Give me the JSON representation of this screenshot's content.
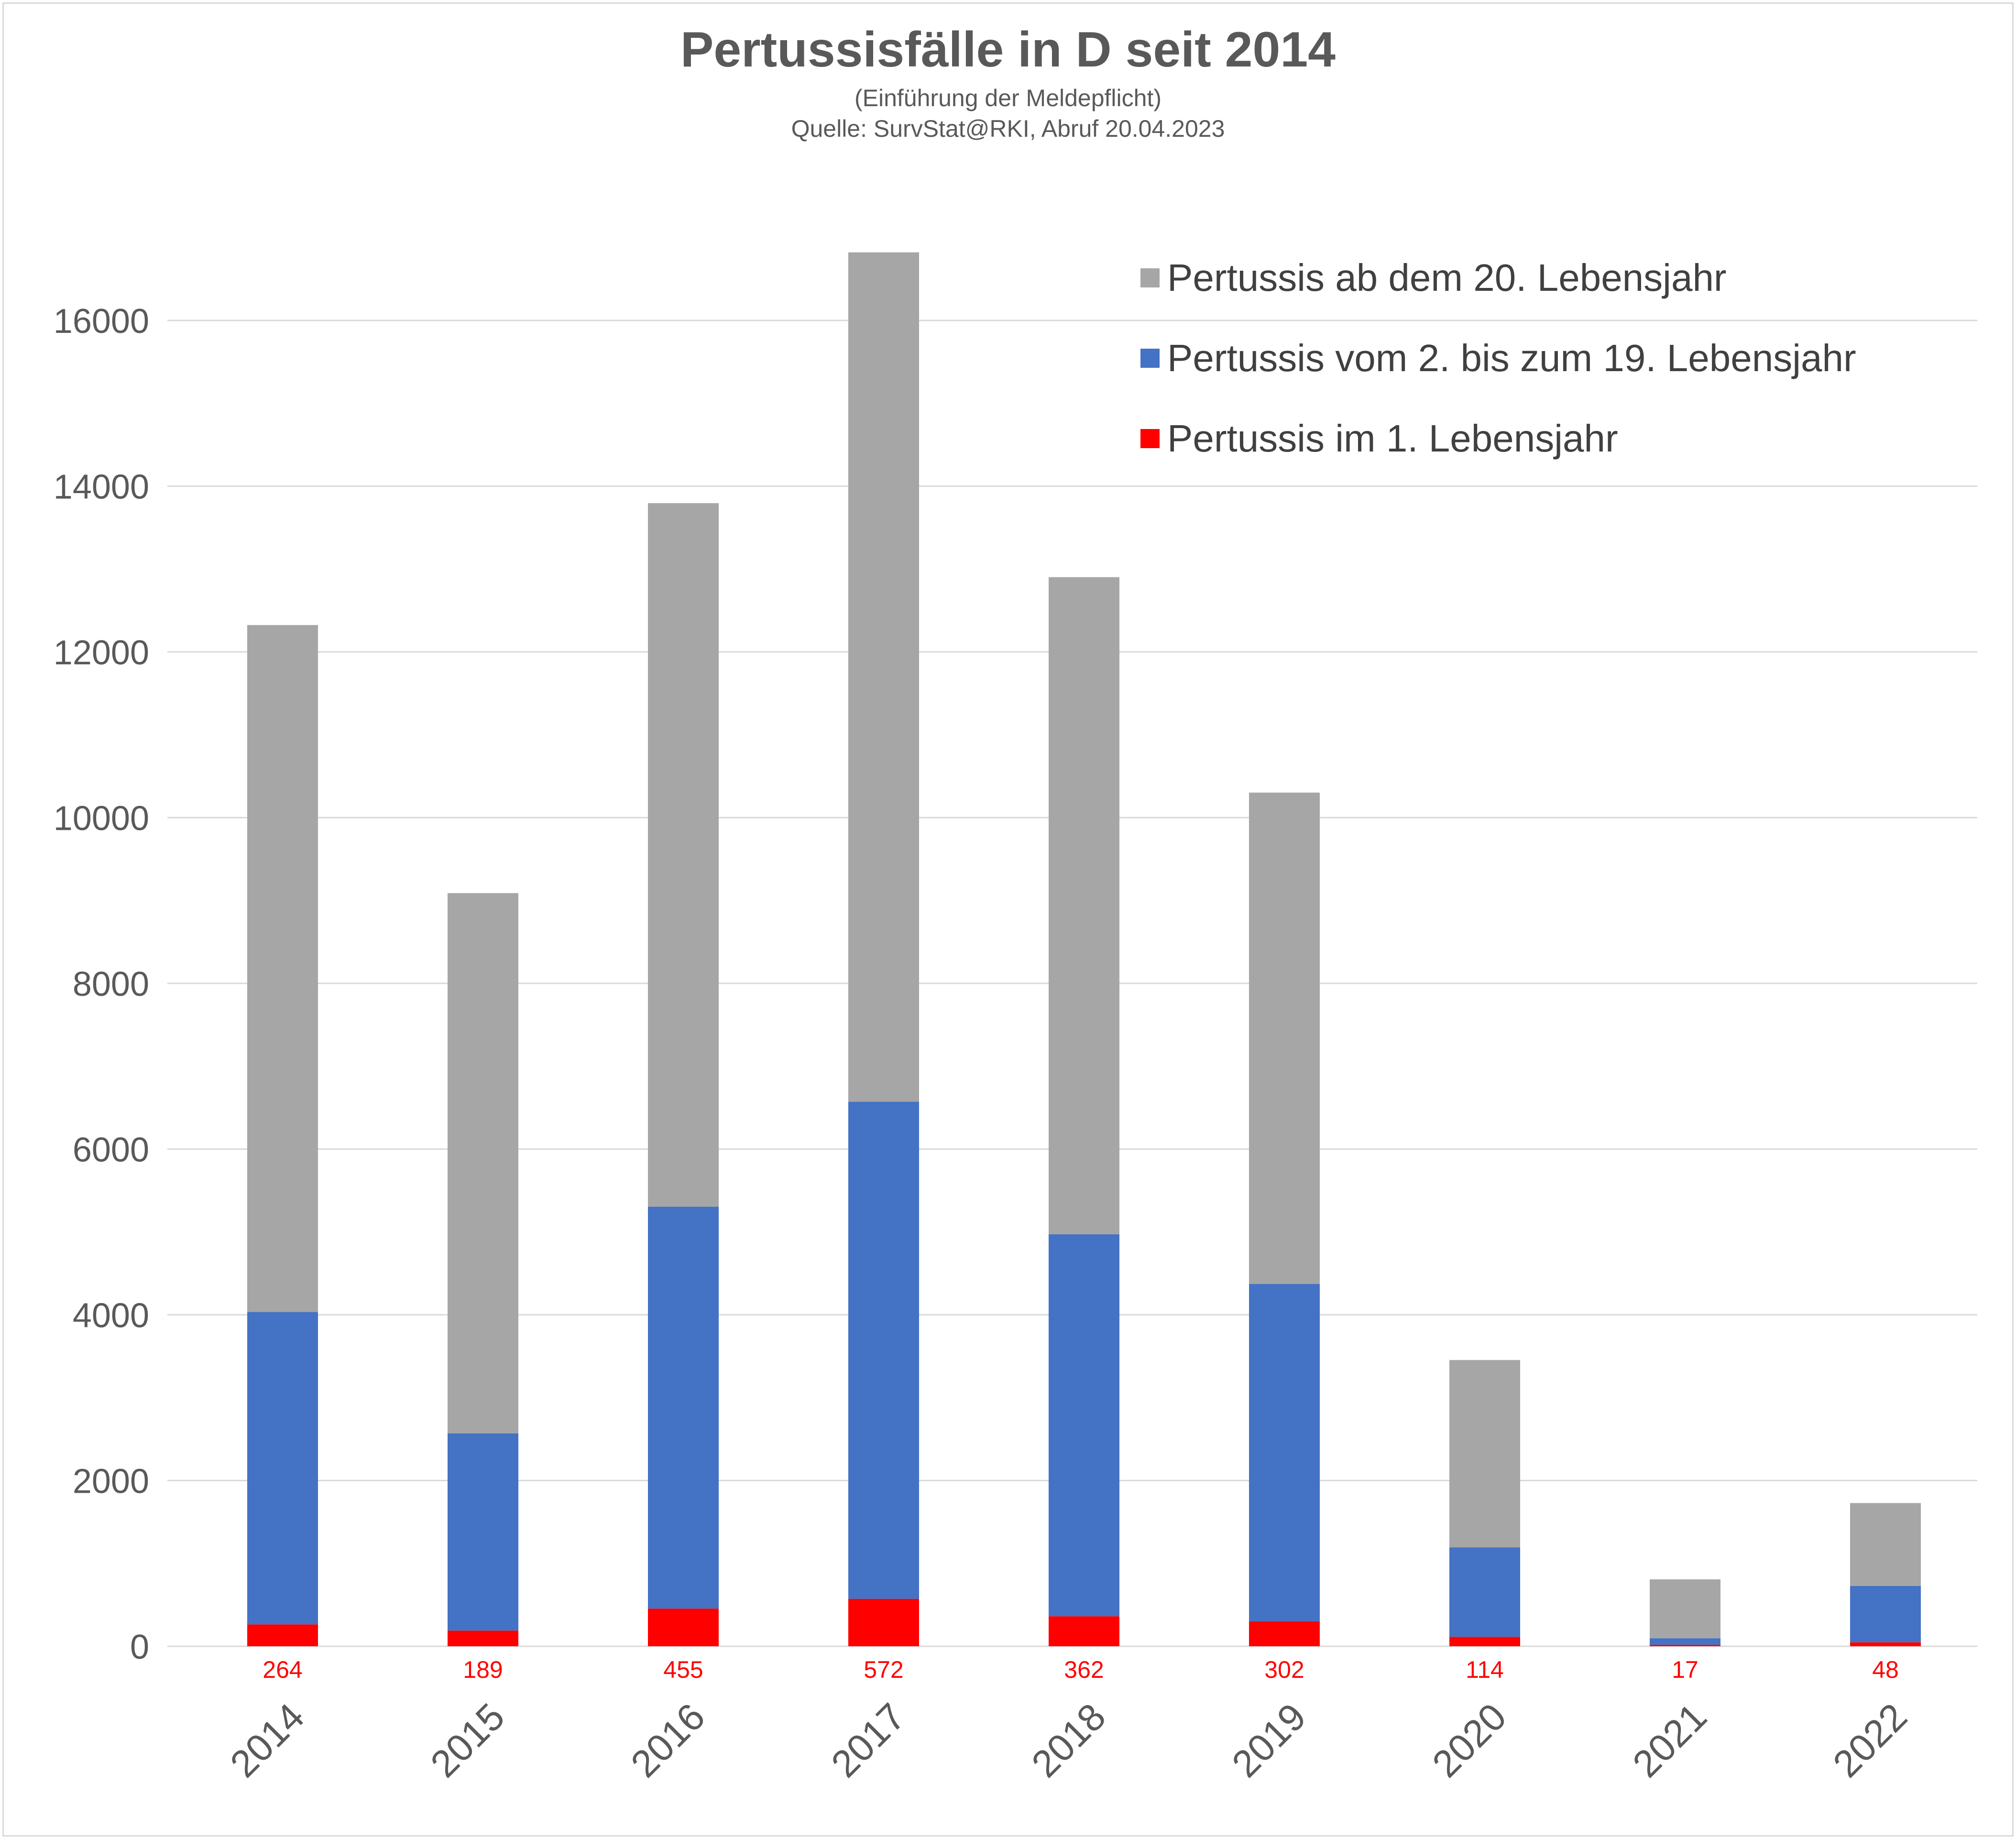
{
  "title": "Pertussisfälle in D seit 2014",
  "subtitle": "(Einführung der Meldepflicht)",
  "source": "Quelle: SurvStat@RKI, Abruf 20.04.2023",
  "colors": {
    "adults": "#a6a6a6",
    "children": "#4472c4",
    "infants": "#ff0000",
    "gridline": "#d9d9d9",
    "axis_text": "#595959"
  },
  "legend_items": [
    {
      "label": "Pertussis ab dem 20. Lebensjahr",
      "color": "#a6a6a6"
    },
    {
      "label": "Pertussis vom 2. bis zum 19. Lebensjahr",
      "color": "#4472c4"
    },
    {
      "label": "Pertussis im 1. Lebensjahr",
      "color": "#ff0000"
    }
  ],
  "chart_data": {
    "type": "bar",
    "stacked": true,
    "title": "Pertussisfälle in D seit 2014",
    "categories": [
      "2014",
      "2015",
      "2016",
      "2017",
      "2018",
      "2019",
      "2020",
      "2021",
      "2022"
    ],
    "series": [
      {
        "name": "Pertussis im 1. Lebensjahr",
        "values": [
          264,
          189,
          455,
          572,
          362,
          302,
          114,
          17,
          48
        ]
      },
      {
        "name": "Pertussis vom 2. bis zum 19. Lebensjahr",
        "values": [
          3770,
          2380,
          4850,
          6000,
          4610,
          4070,
          1080,
          80,
          680
        ]
      },
      {
        "name": "Pertussis ab dem 20. Lebensjahr",
        "values": [
          8290,
          6520,
          8490,
          10250,
          7930,
          5930,
          2260,
          710,
          1000
        ]
      }
    ],
    "data_labels": [
      "264",
      "189",
      "455",
      "572",
      "362",
      "302",
      "114",
      "17",
      "48"
    ],
    "yticks": [
      "0",
      "2000",
      "4000",
      "6000",
      "8000",
      "10000",
      "12000",
      "14000",
      "16000"
    ],
    "ylim": [
      0,
      17000
    ],
    "grid": true,
    "legend_position": "top-right",
    "xlabel": "",
    "ylabel": ""
  }
}
